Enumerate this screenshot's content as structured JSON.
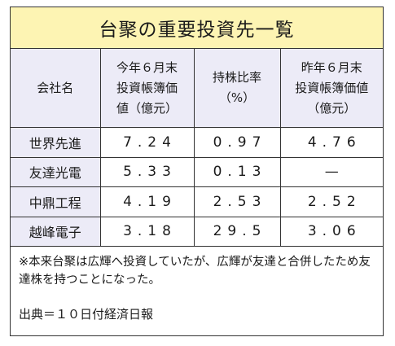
{
  "title": "台聚の重要投資先一覧",
  "table": {
    "headers": [
      [
        "会社名"
      ],
      [
        "今年６月末",
        "投資帳簿価",
        "値（億元）"
      ],
      [
        "持株比率",
        "（%）"
      ],
      [
        "昨年６月末",
        "投資帳簿価値",
        "（億元）"
      ]
    ],
    "rows": [
      [
        "世界先進",
        "7.24",
        "0.97",
        "4.76"
      ],
      [
        "友達光電",
        "5.33",
        "0.13",
        "—"
      ],
      [
        "中鼎工程",
        "4.19",
        "2.53",
        "2.52"
      ],
      [
        "越峰電子",
        "3.18",
        "29.5",
        "3.06"
      ]
    ]
  },
  "note": {
    "text": "※本来台聚は広輝へ投資していたが、広輝が友達と合併したため友達株を持つことになった。",
    "source": "出典＝１０日付経済日報"
  }
}
